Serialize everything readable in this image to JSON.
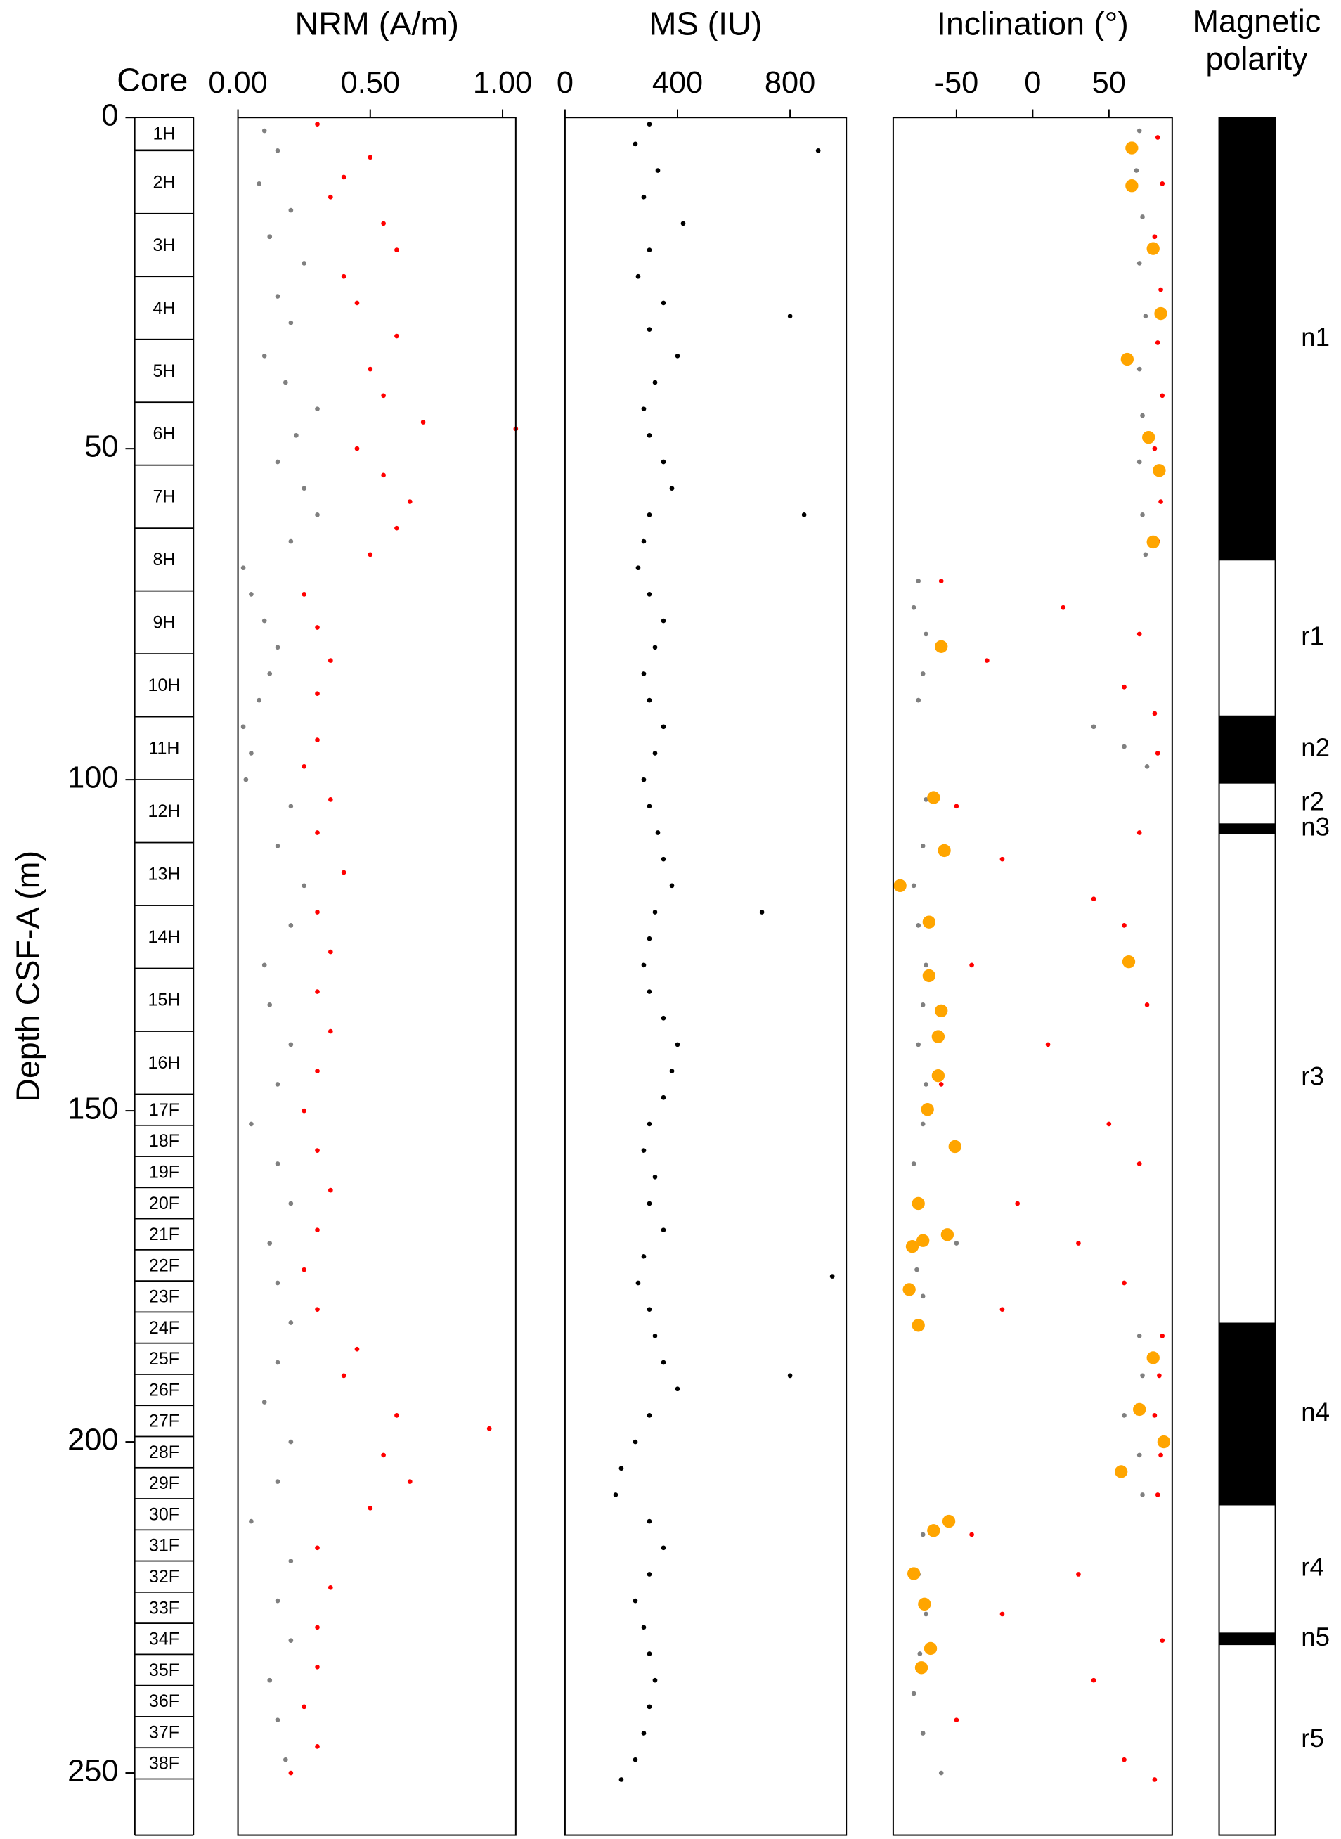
{
  "chart_data": [
    {
      "type": "core-log",
      "title": "Core",
      "ylabel": "Depth CSF-A (m)",
      "ylim": [
        0,
        259.4
      ],
      "yticks": [
        0,
        50,
        100,
        150,
        200,
        250
      ],
      "cores": [
        "1H",
        "2H",
        "3H",
        "4H",
        "5H",
        "6H",
        "7H",
        "8H",
        "9H",
        "10H",
        "11H",
        "12H",
        "13H",
        "14H",
        "15H",
        "16H",
        "17F",
        "18F",
        "19F",
        "20F",
        "21F",
        "22F",
        "23F",
        "24F",
        "25F",
        "26F",
        "27F",
        "28F",
        "29F",
        "30F",
        "31F",
        "32F",
        "33F",
        "34F",
        "35F",
        "36F",
        "37F",
        "38F"
      ],
      "top": [
        0,
        5,
        14.5,
        24,
        33.5,
        43,
        52.5,
        62,
        71.5,
        81,
        90.5,
        100,
        109.5,
        119,
        128.5,
        138,
        147.5,
        152.2,
        156.9,
        161.6,
        166.3,
        171,
        175.7,
        180.4,
        185.1,
        189.8,
        194.5,
        199.2,
        203.9,
        208.6,
        213.3,
        218,
        222.7,
        227.4,
        232.1,
        236.8,
        241.5,
        246.2
      ],
      "bottom": [
        4.9,
        14.5,
        24,
        33.5,
        43,
        52.5,
        62,
        71.5,
        81,
        90.5,
        100,
        109.5,
        119,
        128.5,
        138,
        147.5,
        152.2,
        156.9,
        161.6,
        166.3,
        171,
        175.7,
        180.4,
        185.1,
        189.8,
        194.5,
        199.2,
        203.9,
        208.6,
        213.3,
        218,
        222.7,
        227.4,
        232.1,
        236.8,
        241.5,
        246.2,
        250.9
      ]
    },
    {
      "type": "scatter",
      "title": "NRM (A/m)",
      "xlim": [
        0,
        1.05
      ],
      "xticks": [
        {
          "value": 0,
          "label": "0.00"
        },
        {
          "value": 0.5,
          "label": "0.50"
        },
        {
          "value": 1,
          "label": "1.00"
        }
      ],
      "series": [
        {
          "color": "#808080",
          "marker": "dot",
          "y": [
            2,
            5,
            10,
            14,
            18,
            22,
            27,
            31,
            36,
            40,
            44,
            48,
            52,
            56,
            60,
            64,
            68,
            72,
            76,
            80,
            84,
            88,
            92,
            96,
            100,
            104,
            110,
            116,
            122,
            128,
            134,
            140,
            146,
            152,
            158,
            164,
            170,
            176,
            182,
            188,
            194,
            200,
            206,
            212,
            218,
            224,
            230,
            236,
            242,
            248
          ],
          "x": [
            0.1,
            0.15,
            0.08,
            0.2,
            0.12,
            0.25,
            0.15,
            0.2,
            0.1,
            0.18,
            0.3,
            0.22,
            0.15,
            0.25,
            0.3,
            0.2,
            0.02,
            0.05,
            0.1,
            0.15,
            0.12,
            0.08,
            0.02,
            0.05,
            0.03,
            0.2,
            0.15,
            0.25,
            0.2,
            0.1,
            0.12,
            0.2,
            0.15,
            0.05,
            0.15,
            0.2,
            0.12,
            0.15,
            0.2,
            0.15,
            0.1,
            0.2,
            0.15,
            0.05,
            0.2,
            0.15,
            0.2,
            0.12,
            0.15,
            0.18
          ]
        },
        {
          "color": "#ff0000",
          "marker": "dot",
          "y": [
            1,
            6,
            9,
            12,
            16,
            20,
            24,
            28,
            33,
            38,
            42,
            46,
            47,
            50,
            54,
            58,
            62,
            66,
            72,
            77,
            82,
            87,
            94,
            98,
            103,
            108,
            114,
            120,
            126,
            132,
            138,
            144,
            150,
            156,
            162,
            168,
            174,
            180,
            186,
            190,
            196,
            198,
            202,
            206,
            210,
            216,
            222,
            228,
            234,
            240,
            246,
            250
          ],
          "x": [
            0.3,
            0.5,
            0.4,
            0.35,
            0.55,
            0.6,
            0.4,
            0.45,
            0.6,
            0.5,
            0.55,
            0.7,
            1.05,
            0.45,
            0.55,
            0.65,
            0.6,
            0.5,
            0.25,
            0.3,
            0.35,
            0.3,
            0.3,
            0.25,
            0.35,
            0.3,
            0.4,
            0.3,
            0.35,
            0.3,
            0.35,
            0.3,
            0.25,
            0.3,
            0.35,
            0.3,
            0.25,
            0.3,
            0.45,
            0.4,
            0.6,
            0.95,
            0.55,
            0.65,
            0.5,
            0.3,
            0.35,
            0.3,
            0.3,
            0.25,
            0.3,
            0.2
          ]
        }
      ]
    },
    {
      "type": "scatter",
      "title": "MS (IU)",
      "xlim": [
        0,
        1000
      ],
      "xticks": [
        0,
        400,
        800
      ],
      "series": [
        {
          "color": "#000000",
          "marker": "dot",
          "y": [
            1,
            4,
            8,
            12,
            16,
            20,
            24,
            28,
            32,
            36,
            40,
            44,
            48,
            52,
            56,
            60,
            64,
            68,
            72,
            76,
            80,
            84,
            88,
            92,
            96,
            100,
            104,
            108,
            112,
            116,
            120,
            124,
            128,
            132,
            136,
            140,
            144,
            148,
            152,
            156,
            160,
            164,
            168,
            172,
            176,
            180,
            184,
            188,
            192,
            196,
            200,
            204,
            208,
            212,
            216,
            220,
            224,
            228,
            232,
            236,
            240,
            244,
            248,
            251,
            5,
            30,
            60,
            120,
            190,
            175
          ],
          "x": [
            300,
            250,
            330,
            280,
            420,
            300,
            260,
            350,
            300,
            400,
            320,
            280,
            300,
            350,
            380,
            300,
            280,
            260,
            300,
            350,
            320,
            280,
            300,
            350,
            320,
            280,
            300,
            330,
            350,
            380,
            320,
            300,
            280,
            300,
            350,
            400,
            380,
            350,
            300,
            280,
            320,
            300,
            350,
            280,
            260,
            300,
            320,
            350,
            400,
            300,
            250,
            200,
            180,
            300,
            350,
            300,
            250,
            280,
            300,
            320,
            300,
            280,
            250,
            200,
            900,
            800,
            850,
            700,
            800,
            950
          ]
        }
      ]
    },
    {
      "type": "scatter",
      "title": "Inclination (°)",
      "xlim": [
        -91.5,
        91.5
      ],
      "xticks": [
        -50,
        0,
        50
      ],
      "series": [
        {
          "color": "#808080",
          "marker": "dot",
          "y": [
            2,
            8,
            15,
            22,
            30,
            38,
            45,
            52,
            60,
            66,
            70,
            74,
            78,
            84,
            88,
            92,
            95,
            98,
            103,
            110,
            116,
            122,
            128,
            134,
            140,
            146,
            152,
            158,
            164,
            170,
            174,
            178,
            184,
            190,
            196,
            202,
            208,
            214,
            220,
            226,
            232,
            238,
            244,
            250
          ],
          "x": [
            70,
            68,
            72,
            70,
            74,
            70,
            72,
            70,
            72,
            74,
            -75,
            -78,
            -70,
            -72,
            -75,
            40,
            60,
            75,
            -70,
            -72,
            -78,
            -75,
            -70,
            -72,
            -75,
            -70,
            -72,
            -78,
            -75,
            -50,
            -76,
            -72,
            70,
            72,
            60,
            70,
            72,
            -72,
            -75,
            -70,
            -74,
            -78,
            -72,
            -60
          ]
        },
        {
          "color": "#ff0000",
          "marker": "dot",
          "y": [
            3,
            10,
            18,
            26,
            34,
            42,
            50,
            58,
            64,
            70,
            74,
            78,
            82,
            86,
            90,
            96,
            104,
            108,
            112,
            118,
            122,
            128,
            134,
            140,
            146,
            152,
            158,
            164,
            170,
            176,
            180,
            184,
            190,
            196,
            202,
            208,
            214,
            220,
            226,
            230,
            236,
            242,
            248,
            251
          ],
          "x": [
            82,
            85,
            80,
            84,
            82,
            85,
            80,
            84,
            82,
            -60,
            20,
            70,
            -30,
            60,
            80,
            82,
            -50,
            70,
            -20,
            40,
            60,
            -40,
            75,
            10,
            -60,
            50,
            70,
            -10,
            30,
            60,
            -20,
            85,
            83,
            80,
            84,
            82,
            -40,
            30,
            -20,
            85,
            40,
            -50,
            60,
            80
          ]
        },
        {
          "color": "#ffa500",
          "marker": "disc",
          "y": [
            4.6,
            10.3,
            19.8,
            29.6,
            36.5,
            48.3,
            53.3,
            64.1,
            79.9,
            102.7,
            110.7,
            116,
            121.5,
            127.5,
            129.6,
            134.9,
            138.8,
            144.7,
            149.8,
            155.4,
            164,
            168.7,
            169.6,
            170.5,
            177,
            182.4,
            187.3,
            195.1,
            200,
            204.5,
            212,
            213.4,
            219.9,
            224.5,
            231.2,
            234.1
          ],
          "x": [
            65,
            65,
            79,
            84,
            62,
            76,
            83,
            79,
            -60,
            -65,
            -58,
            -87,
            -68,
            63,
            -68,
            -60,
            -62,
            -62,
            -69,
            -51,
            -75,
            -56,
            -72,
            -79,
            -81,
            -75,
            79,
            70,
            86,
            58,
            -55,
            -65,
            -78,
            -71,
            -67,
            -73
          ]
        }
      ]
    },
    {
      "type": "polarity",
      "title": "Magnetic polarity",
      "labels": [
        "n1",
        "r1",
        "n2",
        "r2",
        "n3",
        "r3",
        "n4",
        "r4",
        "n5",
        "r5"
      ],
      "top": [
        0,
        66.9,
        90.3,
        100.6,
        106.6,
        108.2,
        182,
        209.6,
        228.8,
        230.7
      ],
      "bottom": [
        66.9,
        90.3,
        100.6,
        106.6,
        108.2,
        182,
        209.6,
        228.8,
        230.7,
        259.4
      ],
      "colors": [
        "#000000",
        "#ffffff",
        "#000000",
        "#ffffff",
        "#000000",
        "#ffffff",
        "#000000",
        "#ffffff",
        "#000000",
        "#ffffff"
      ]
    }
  ]
}
